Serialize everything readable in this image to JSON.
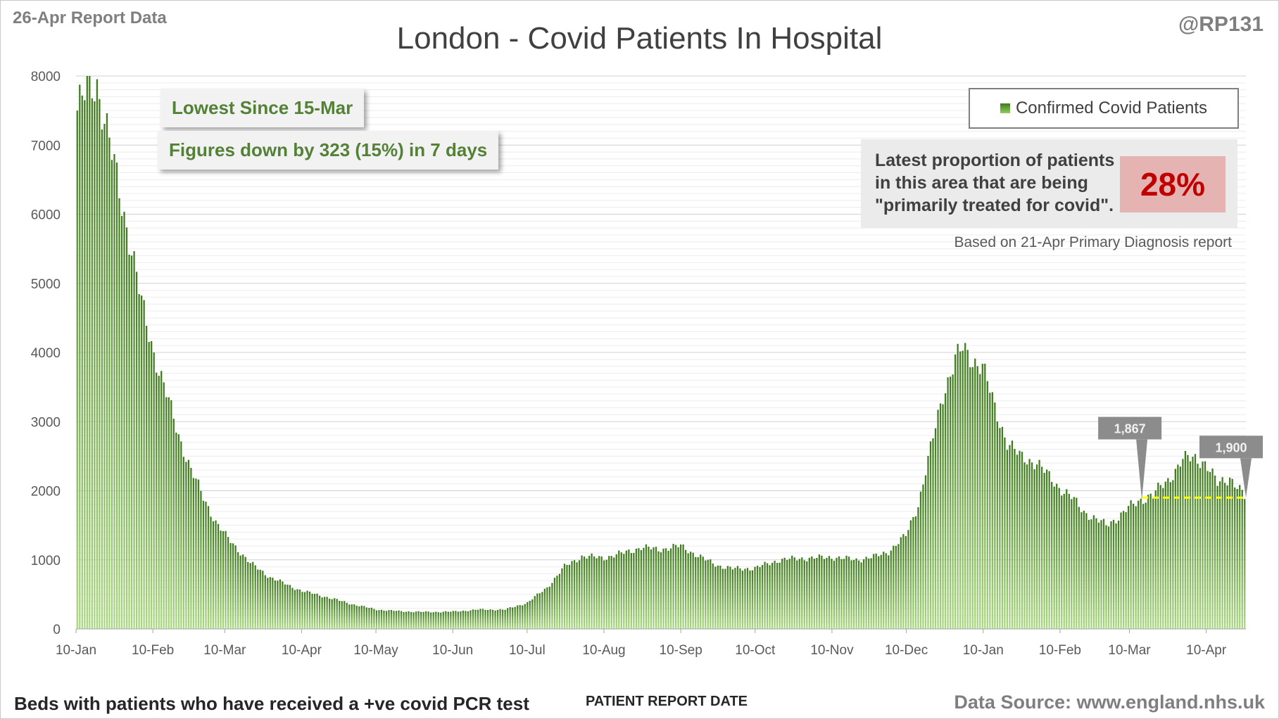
{
  "header": {
    "report_label": "26-Apr Report Data",
    "handle": "@RP131"
  },
  "callouts": {
    "lowest": "Lowest Since 15-Mar",
    "change": "Figures down by 323 (15%) in 7 days"
  },
  "proportion": {
    "text_line1": "Latest proportion of patients",
    "text_line2": "in this area that are being",
    "text_line3": "\"primarily treated for covid\".",
    "value": "28%",
    "note": "Based on 21-Apr Primary Diagnosis report"
  },
  "footer": {
    "left": "Beds with patients who have received a +ve covid PCR test",
    "source": "Data Source: www.england.nhs.uk"
  },
  "colors": {
    "bar_dark": "#3d7a1c",
    "bar_light": "#a9d97f",
    "callout_text": "#538135",
    "highlight": "#c00000",
    "marker_line": "#ffff00"
  },
  "chart_data": {
    "type": "bar",
    "title": "London - Covid Patients In Hospital",
    "xlabel": "PATIENT REPORT DATE",
    "ylabel": "",
    "ylim": [
      0,
      8000
    ],
    "yticks": [
      0,
      1000,
      2000,
      3000,
      4000,
      5000,
      6000,
      7000,
      8000
    ],
    "grid": true,
    "legend_position": "top-right",
    "x_start": "2020-01-10",
    "x_end": "2021-04-26",
    "xtick_labels": [
      {
        "label": "10-Jan",
        "date": "2020-01-10"
      },
      {
        "label": "10-Feb",
        "date": "2020-02-10"
      },
      {
        "label": "10-Mar",
        "date": "2020-03-10"
      },
      {
        "label": "10-Apr",
        "date": "2020-04-10"
      },
      {
        "label": "10-May",
        "date": "2020-05-10"
      },
      {
        "label": "10-Jun",
        "date": "2020-06-10"
      },
      {
        "label": "10-Jul",
        "date": "2020-07-10"
      },
      {
        "label": "10-Aug",
        "date": "2020-08-10"
      },
      {
        "label": "10-Sep",
        "date": "2020-09-10"
      },
      {
        "label": "10-Oct",
        "date": "2020-10-10"
      },
      {
        "label": "10-Nov",
        "date": "2020-11-10"
      },
      {
        "label": "10-Dec",
        "date": "2020-12-10"
      },
      {
        "label": "10-Jan",
        "date": "2021-01-10"
      },
      {
        "label": "10-Feb",
        "date": "2021-02-10"
      },
      {
        "label": "10-Mar",
        "date": "2021-03-10"
      },
      {
        "label": "10-Apr",
        "date": "2021-04-10"
      }
    ],
    "series": [
      {
        "name": "Confirmed Covid Patients",
        "points": [
          [
            "2020-01-10",
            7500
          ],
          [
            "2020-01-15",
            7850
          ],
          [
            "2020-01-18",
            7900
          ],
          [
            "2020-01-22",
            7200
          ],
          [
            "2020-01-26",
            6500
          ],
          [
            "2020-02-01",
            5500
          ],
          [
            "2020-02-05",
            4700
          ],
          [
            "2020-02-10",
            4000
          ],
          [
            "2020-02-15",
            3400
          ],
          [
            "2020-02-20",
            2800
          ],
          [
            "2020-02-25",
            2300
          ],
          [
            "2020-03-01",
            1900
          ],
          [
            "2020-03-06",
            1550
          ],
          [
            "2020-03-10",
            1350
          ],
          [
            "2020-03-15",
            1150
          ],
          [
            "2020-03-20",
            950
          ],
          [
            "2020-03-28",
            750
          ],
          [
            "2020-04-05",
            620
          ],
          [
            "2020-04-10",
            550
          ],
          [
            "2020-04-20",
            460
          ],
          [
            "2020-04-30",
            360
          ],
          [
            "2020-05-10",
            280
          ],
          [
            "2020-05-20",
            255
          ],
          [
            "2020-05-30",
            245
          ],
          [
            "2020-06-10",
            250
          ],
          [
            "2020-06-20",
            280
          ],
          [
            "2020-07-01",
            280
          ],
          [
            "2020-07-10",
            380
          ],
          [
            "2020-07-18",
            600
          ],
          [
            "2020-07-25",
            900
          ],
          [
            "2020-08-01",
            1050
          ],
          [
            "2020-08-10",
            1030
          ],
          [
            "2020-08-18",
            1100
          ],
          [
            "2020-08-25",
            1180
          ],
          [
            "2020-09-01",
            1150
          ],
          [
            "2020-09-10",
            1200
          ],
          [
            "2020-09-15",
            1100
          ],
          [
            "2020-09-20",
            1000
          ],
          [
            "2020-09-25",
            920
          ],
          [
            "2020-10-01",
            870
          ],
          [
            "2020-10-10",
            880
          ],
          [
            "2020-10-15",
            940
          ],
          [
            "2020-10-20",
            1000
          ],
          [
            "2020-10-28",
            1020
          ],
          [
            "2020-11-05",
            1030
          ],
          [
            "2020-11-10",
            1040
          ],
          [
            "2020-11-20",
            1000
          ],
          [
            "2020-11-28",
            1050
          ],
          [
            "2020-12-03",
            1120
          ],
          [
            "2020-12-10",
            1350
          ],
          [
            "2020-12-15",
            1800
          ],
          [
            "2020-12-20",
            2600
          ],
          [
            "2020-12-25",
            3400
          ],
          [
            "2020-12-30",
            3900
          ],
          [
            "2021-01-02",
            4050
          ],
          [
            "2021-01-06",
            3900
          ],
          [
            "2021-01-10",
            3800
          ],
          [
            "2021-01-15",
            3200
          ],
          [
            "2021-01-20",
            2700
          ],
          [
            "2021-01-25",
            2500
          ],
          [
            "2021-02-01",
            2400
          ],
          [
            "2021-02-06",
            2200
          ],
          [
            "2021-02-10",
            2050
          ],
          [
            "2021-02-15",
            1900
          ],
          [
            "2021-02-20",
            1700
          ],
          [
            "2021-02-25",
            1580
          ],
          [
            "2021-03-01",
            1500
          ],
          [
            "2021-03-06",
            1620
          ],
          [
            "2021-03-10",
            1750
          ],
          [
            "2021-03-15",
            1867
          ],
          [
            "2021-03-20",
            1950
          ],
          [
            "2021-03-26",
            2150
          ],
          [
            "2021-04-01",
            2450
          ],
          [
            "2021-04-06",
            2480
          ],
          [
            "2021-04-10",
            2400
          ],
          [
            "2021-04-15",
            2100
          ],
          [
            "2021-04-20",
            2200
          ],
          [
            "2021-04-26",
            1900
          ]
        ]
      }
    ],
    "annotations": [
      {
        "label": "1,867",
        "date": "2021-03-15",
        "value": 1867
      },
      {
        "label": "1,900",
        "date": "2021-04-26",
        "value": 1900
      }
    ],
    "reference_line": {
      "from_date": "2021-03-15",
      "to_date": "2021-04-26",
      "value": 1900
    }
  }
}
